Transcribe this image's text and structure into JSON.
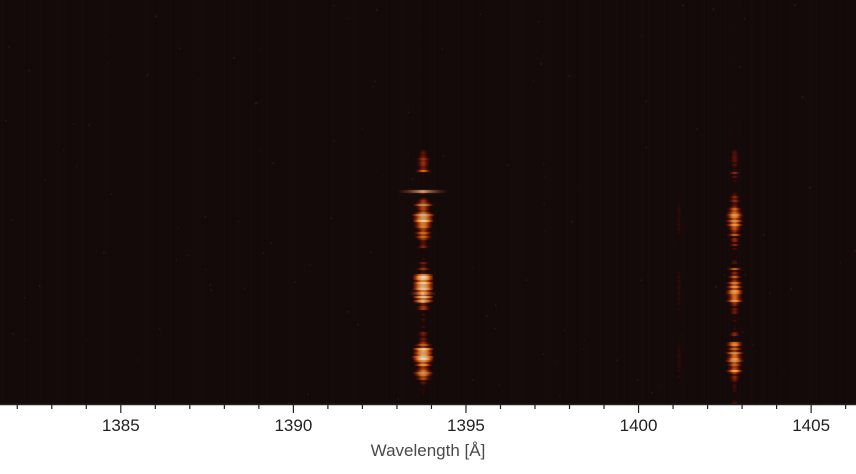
{
  "figure": {
    "kind": "spectrogram",
    "colormap": "black-red-orange-white",
    "background": "#140a0a",
    "xlabel": "Wavelength [Å]",
    "x_axis": {
      "range": [
        1381.5,
        1406.3
      ],
      "major_ticks": [
        1385,
        1390,
        1395,
        1400,
        1405
      ],
      "major_tick_labels": [
        "1385",
        "1390",
        "1395",
        "1400",
        "1405"
      ],
      "minor_tick_step": 1
    },
    "emission_lines": [
      {
        "wavelength": 1393.75,
        "relative_peak": 1.0
      },
      {
        "wavelength": 1402.77,
        "relative_peak": 0.85
      },
      {
        "wavelength": 1401.16,
        "relative_peak": 0.25
      }
    ]
  }
}
